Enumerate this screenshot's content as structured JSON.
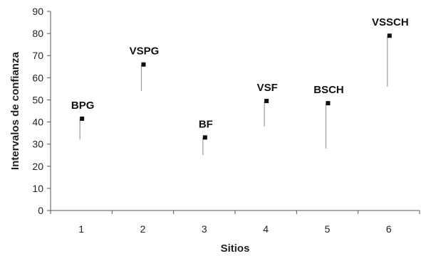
{
  "chart_data": {
    "type": "scatter",
    "title": "",
    "xlabel": "Sitios",
    "ylabel": "Intervalos de confianza",
    "ylim": [
      0,
      90
    ],
    "y_ticks": [
      0,
      10,
      20,
      30,
      40,
      50,
      60,
      70,
      80,
      90
    ],
    "categories": [
      "1",
      "2",
      "3",
      "4",
      "5",
      "6"
    ],
    "grid": false,
    "legend": "none",
    "points": [
      {
        "x": "1",
        "label": "BPG",
        "value": 41.5,
        "lower": 32
      },
      {
        "x": "2",
        "label": "VSPG",
        "value": 66,
        "lower": 54
      },
      {
        "x": "3",
        "label": "BF",
        "value": 33,
        "lower": 25
      },
      {
        "x": "4",
        "label": "VSF",
        "value": 49.5,
        "lower": 38
      },
      {
        "x": "5",
        "label": "BSCH",
        "value": 48.5,
        "lower": 28
      },
      {
        "x": "6",
        "label": "VSSCH",
        "value": 79,
        "lower": 56
      }
    ],
    "colors": {
      "marker": "#111111",
      "whisker": "#9a9a9a",
      "axis": "#555555"
    }
  }
}
